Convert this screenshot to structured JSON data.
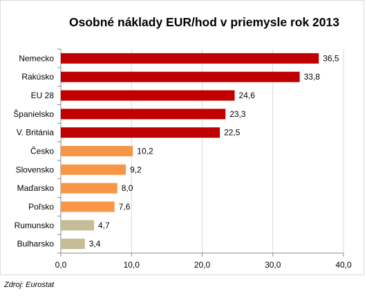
{
  "chart_data": {
    "type": "bar",
    "orientation": "horizontal",
    "title": "Osobné náklady EUR/hod v priemysle rok 2013",
    "categories": [
      "Nemecko",
      "Rakúsko",
      "EU 28",
      "Španielsko",
      "V. Británia",
      "Česko",
      "Slovensko",
      "Maďarsko",
      "Poľsko",
      "Rumunsko",
      "Bulharsko"
    ],
    "values": [
      36.5,
      33.8,
      24.6,
      23.3,
      22.5,
      10.2,
      9.2,
      8.0,
      7.6,
      4.7,
      3.4
    ],
    "value_labels": [
      "36,5",
      "33,8",
      "24,6",
      "23,3",
      "22,5",
      "10,2",
      "9,2",
      "8,0",
      "7,6",
      "4,7",
      "3,4"
    ],
    "bar_colors": [
      "#c00000",
      "#c00000",
      "#c00000",
      "#c00000",
      "#c00000",
      "#f79646",
      "#f79646",
      "#f79646",
      "#f79646",
      "#c4bd97",
      "#c4bd97"
    ],
    "xlim": [
      0,
      40
    ],
    "x_ticks": [
      0,
      10,
      20,
      30,
      40
    ],
    "x_tick_labels": [
      "0,0",
      "10,0",
      "20,0",
      "30,0",
      "40,0"
    ],
    "xlabel": "",
    "ylabel": "",
    "grid": "vertical",
    "grid_color": "#d9d9d9"
  },
  "source_note": "Zdroj: Eurostat"
}
